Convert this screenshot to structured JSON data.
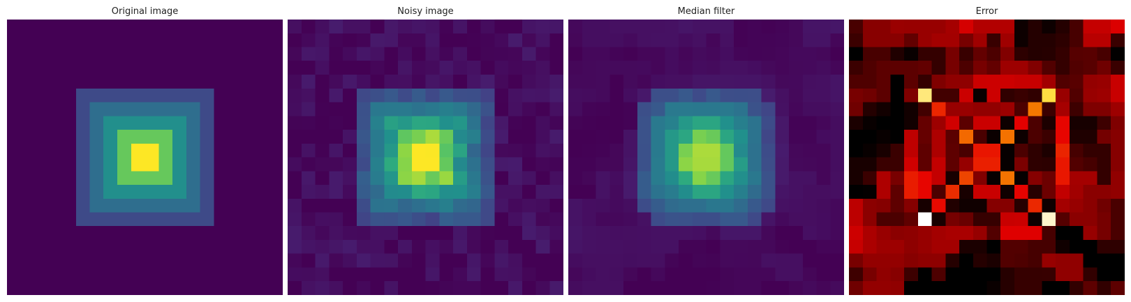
{
  "figure": {
    "panels": [
      {
        "title": "Original image",
        "image": "original-image",
        "colormap": "viridis"
      },
      {
        "title": "Noisy image",
        "image": "noisy-image",
        "colormap": "viridis"
      },
      {
        "title": "Median filter",
        "image": "median-filtered-image",
        "colormap": "viridis"
      },
      {
        "title": "Error",
        "image": "error-map",
        "colormap": "hot"
      }
    ]
  }
}
